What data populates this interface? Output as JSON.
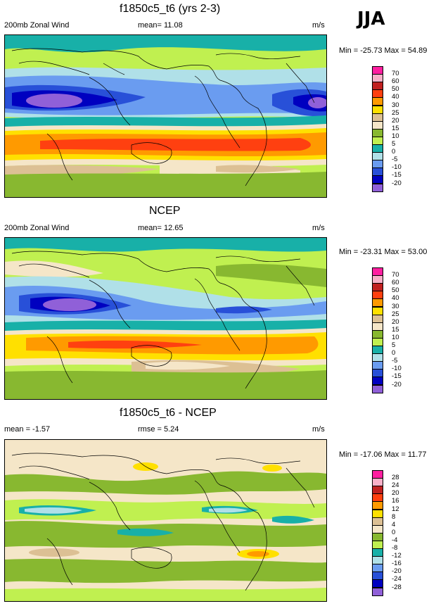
{
  "season": "JJA",
  "panels": [
    {
      "title": "f1850c5_t6 (yrs 2-3)",
      "left_label": "200mb Zonal Wind",
      "center_label": "mean=  11.08",
      "units": "m/s",
      "minmax": "Min = -25.73 Max = 54.89",
      "levels": [
        "70",
        "60",
        "50",
        "40",
        "30",
        "25",
        "20",
        "15",
        "10",
        "5",
        "0",
        "-5",
        "-10",
        "-15",
        "-20"
      ],
      "colors": [
        "#ff1fa0",
        "#f8b0c8",
        "#c02020",
        "#ff4010",
        "#ff9a00",
        "#ffe000",
        "#dcc094",
        "#f5e6c8",
        "#88b830",
        "#c0f050",
        "#18b0a8",
        "#b0e0e8",
        "#6a9cf0",
        "#2850d8",
        "#0000c0",
        "#9060d8"
      ]
    },
    {
      "title": "NCEP",
      "left_label": "200mb Zonal Wind",
      "center_label": "mean=  12.65",
      "units": "m/s",
      "minmax": "Min = -23.31 Max = 53.00",
      "levels": [
        "70",
        "60",
        "50",
        "40",
        "30",
        "25",
        "20",
        "15",
        "10",
        "5",
        "0",
        "-5",
        "-10",
        "-15",
        "-20"
      ],
      "colors": [
        "#ff1fa0",
        "#f8b0c8",
        "#c02020",
        "#ff4010",
        "#ff9a00",
        "#ffe000",
        "#dcc094",
        "#f5e6c8",
        "#88b830",
        "#c0f050",
        "#18b0a8",
        "#b0e0e8",
        "#6a9cf0",
        "#2850d8",
        "#0000c0",
        "#9060d8"
      ]
    },
    {
      "title": "f1850c5_t6 - NCEP",
      "left_label": "mean =  -1.57",
      "center_label": "rmse =   5.24",
      "units": "m/s",
      "minmax": "Min = -17.06 Max = 11.77",
      "levels": [
        "28",
        "24",
        "20",
        "16",
        "12",
        "8",
        "4",
        "0",
        "-4",
        "-8",
        "-12",
        "-16",
        "-20",
        "-24",
        "-28"
      ],
      "colors": [
        "#ff1fa0",
        "#f8b0c8",
        "#c02020",
        "#ff4010",
        "#ff9a00",
        "#ffe000",
        "#dcc094",
        "#f5e6c8",
        "#88b830",
        "#c0f050",
        "#18b0a8",
        "#b0e0e8",
        "#6a9cf0",
        "#2850d8",
        "#0000c0",
        "#9060d8"
      ]
    }
  ]
}
